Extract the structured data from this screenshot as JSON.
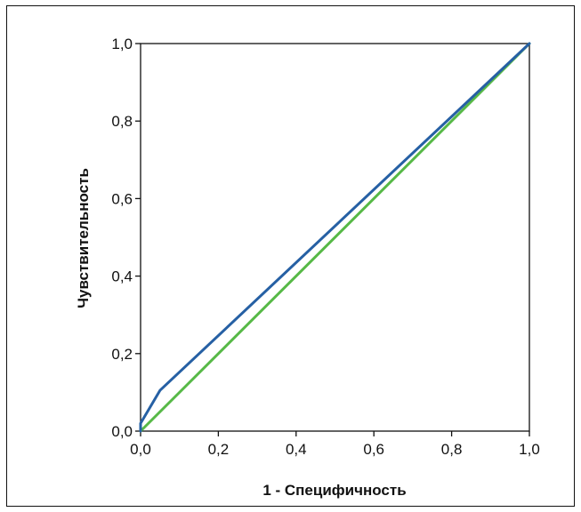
{
  "chart_data": {
    "type": "line",
    "title": "",
    "xlabel": "1 - Специфичность",
    "ylabel": "Чувствительность",
    "xlim": [
      0,
      1
    ],
    "ylim": [
      0,
      1
    ],
    "x_ticks": [
      "0,0",
      "0,2",
      "0,4",
      "0,6",
      "0,8",
      "1,0"
    ],
    "y_ticks": [
      "0,0",
      "0,2",
      "0,4",
      "0,6",
      "0,8",
      "1,0"
    ],
    "grid": false,
    "legend": "none",
    "series": [
      {
        "color": "#2660a4",
        "points": [
          [
            0,
            0
          ],
          [
            0,
            0.02
          ],
          [
            0.05,
            0.105
          ],
          [
            1,
            1
          ]
        ]
      },
      {
        "color": "#57b947",
        "points": [
          [
            0,
            0
          ],
          [
            1,
            1
          ]
        ]
      }
    ]
  }
}
